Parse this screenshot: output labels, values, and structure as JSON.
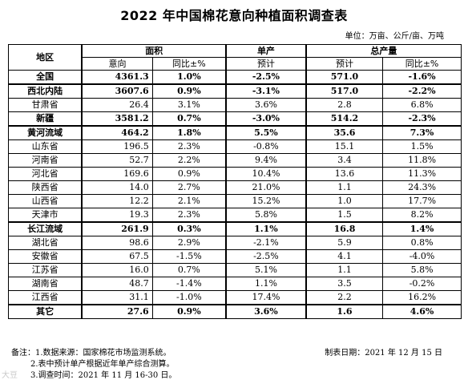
{
  "title": "2022 年中国棉花意向种植面积调查表",
  "units": "单位：万亩、公斤/亩、万吨",
  "headers": {
    "region": "地区",
    "area": "面积",
    "yield": "单产",
    "output": "总产量",
    "intent": "意向",
    "yoy": "同比±%",
    "forecast": "预计"
  },
  "rows": [
    {
      "name": "全国",
      "area": "4361.3",
      "area_yoy": "1.0%",
      "yield": "-2.5%",
      "output": "571.0",
      "output_yoy": "-1.6%",
      "bold": true
    },
    {
      "name": "西北内陆",
      "area": "3607.6",
      "area_yoy": "0.9%",
      "yield": "-3.1%",
      "output": "517.0",
      "output_yoy": "-2.2%",
      "bold": true
    },
    {
      "name": "甘肃省",
      "area": "26.4",
      "area_yoy": "3.1%",
      "yield": "3.6%",
      "output": "2.8",
      "output_yoy": "6.8%",
      "bold": false
    },
    {
      "name": "新疆",
      "area": "3581.2",
      "area_yoy": "0.7%",
      "yield": "-3.0%",
      "output": "514.2",
      "output_yoy": "-2.3%",
      "bold": true
    },
    {
      "name": "黄河流域",
      "area": "464.2",
      "area_yoy": "1.8%",
      "yield": "5.5%",
      "output": "35.6",
      "output_yoy": "7.3%",
      "bold": true
    },
    {
      "name": "山东省",
      "area": "196.5",
      "area_yoy": "2.3%",
      "yield": "-0.8%",
      "output": "15.1",
      "output_yoy": "1.5%",
      "bold": false
    },
    {
      "name": "河南省",
      "area": "52.7",
      "area_yoy": "2.2%",
      "yield": "9.4%",
      "output": "3.4",
      "output_yoy": "11.8%",
      "bold": false
    },
    {
      "name": "河北省",
      "area": "169.6",
      "area_yoy": "0.9%",
      "yield": "10.4%",
      "output": "13.6",
      "output_yoy": "11.3%",
      "bold": false
    },
    {
      "name": "陕西省",
      "area": "14.0",
      "area_yoy": "2.7%",
      "yield": "21.0%",
      "output": "1.1",
      "output_yoy": "24.3%",
      "bold": false
    },
    {
      "name": "山西省",
      "area": "12.2",
      "area_yoy": "2.1%",
      "yield": "15.2%",
      "output": "1.0",
      "output_yoy": "17.7%",
      "bold": false
    },
    {
      "name": "天津市",
      "area": "19.3",
      "area_yoy": "2.3%",
      "yield": "5.8%",
      "output": "1.5",
      "output_yoy": "8.2%",
      "bold": false
    },
    {
      "name": "长江流域",
      "area": "261.9",
      "area_yoy": "0.3%",
      "yield": "1.1%",
      "output": "16.8",
      "output_yoy": "1.4%",
      "bold": true
    },
    {
      "name": "湖北省",
      "area": "98.6",
      "area_yoy": "2.9%",
      "yield": "-2.1%",
      "output": "5.9",
      "output_yoy": "0.8%",
      "bold": false
    },
    {
      "name": "安徽省",
      "area": "67.5",
      "area_yoy": "-1.5%",
      "yield": "-2.5%",
      "output": "4.1",
      "output_yoy": "-4.0%",
      "bold": false
    },
    {
      "name": "江苏省",
      "area": "16.0",
      "area_yoy": "0.7%",
      "yield": "5.1%",
      "output": "1.1",
      "output_yoy": "5.8%",
      "bold": false
    },
    {
      "name": "湖南省",
      "area": "48.7",
      "area_yoy": "-1.4%",
      "yield": "1.1%",
      "output": "3.5",
      "output_yoy": "-0.2%",
      "bold": false
    },
    {
      "name": "江西省",
      "area": "31.1",
      "area_yoy": "-1.0%",
      "yield": "17.4%",
      "output": "2.2",
      "output_yoy": "16.2%",
      "bold": false
    },
    {
      "name": "其它",
      "area": "27.6",
      "area_yoy": "0.9%",
      "yield": "3.6%",
      "output": "1.6",
      "output_yoy": "4.6%",
      "bold": true
    }
  ],
  "notes": {
    "note1": "备注：1.数据来源：国家棉花市场监测系统。",
    "note2": "2.表中预计单产根据近年单产综合测算。",
    "note3": "3.调查时间：2021 年 11 月 16-30 日。",
    "date": "制表日期：2021 年 12 月 15 日"
  },
  "watermark": "大豆"
}
